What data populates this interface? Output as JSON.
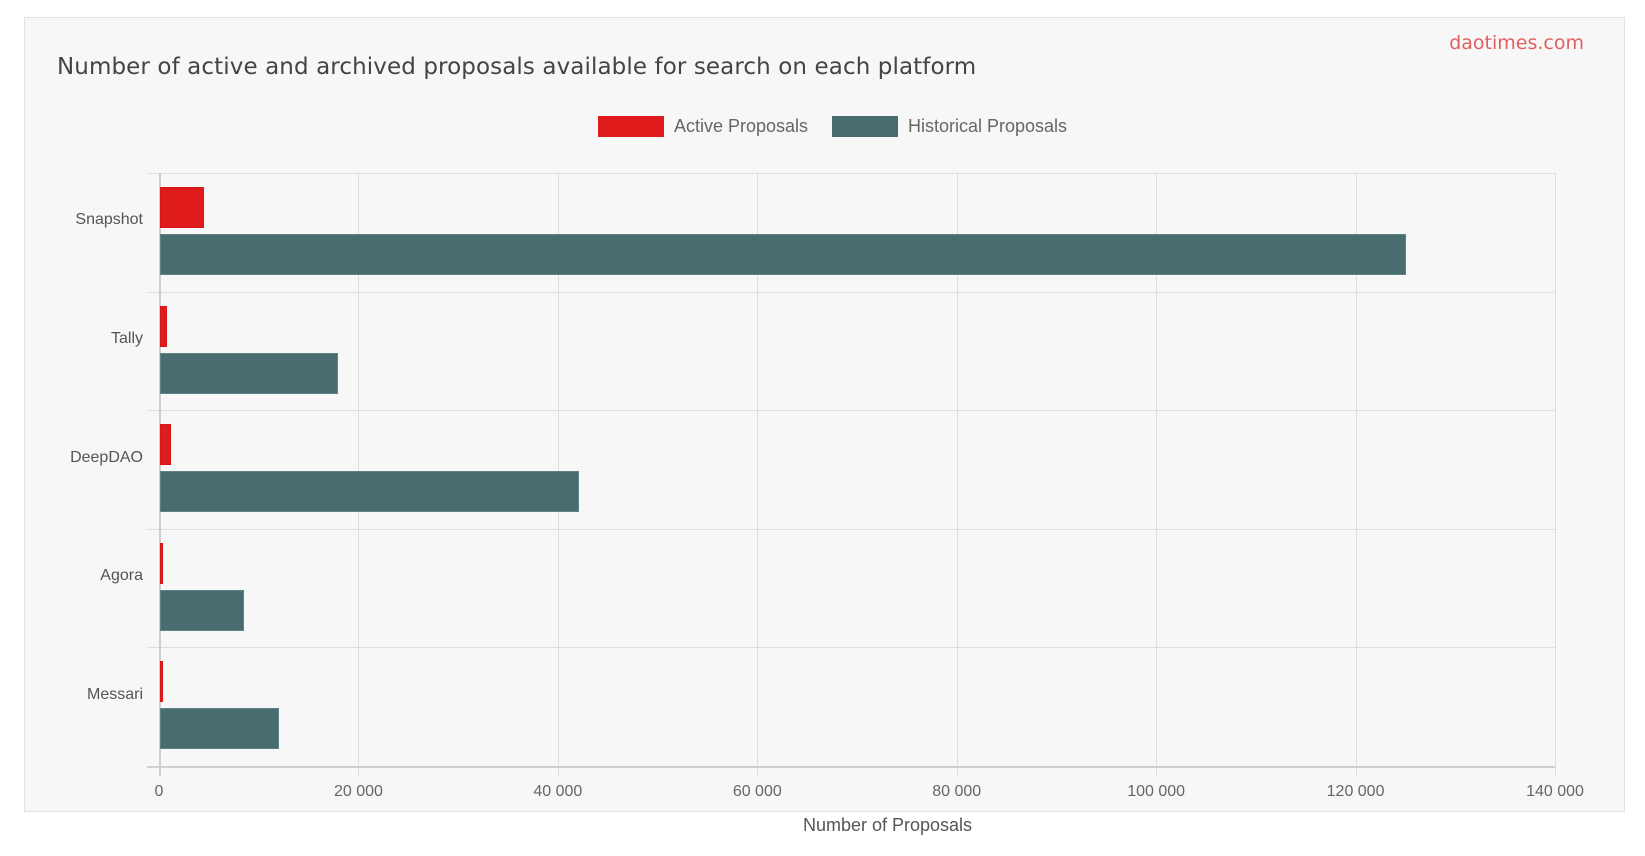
{
  "chart": {
    "title": "Number of active and archived proposals available for search on each platform",
    "brand": "daotimes.com",
    "xlabel": "Number of Proposals",
    "legend": [
      {
        "label": "Active Proposals",
        "color": "#e01b1b"
      },
      {
        "label": "Historical Proposals",
        "color": "#476d6f"
      }
    ],
    "xticks": [
      "0",
      "20 000",
      "40 000",
      "60 000",
      "80 000",
      "100 000",
      "120 000",
      "140 000"
    ],
    "categories": [
      "Snapshot",
      "Tally",
      "DeepDAO",
      "Agora",
      "Messari"
    ]
  },
  "chart_data": {
    "type": "bar",
    "orientation": "horizontal",
    "title": "Number of active and archived proposals available for search on each platform",
    "xlabel": "Number of Proposals",
    "ylabel": "",
    "categories": [
      "Snapshot",
      "Tally",
      "DeepDAO",
      "Agora",
      "Messari"
    ],
    "series": [
      {
        "name": "Active Proposals",
        "color": "#e01b1b",
        "values": [
          4400,
          750,
          1100,
          350,
          250
        ]
      },
      {
        "name": "Historical Proposals",
        "color": "#476d6f",
        "values": [
          125000,
          17900,
          42000,
          8400,
          11900
        ]
      }
    ],
    "xlim": [
      0,
      140000
    ],
    "xticks": [
      0,
      20000,
      40000,
      60000,
      80000,
      100000,
      120000,
      140000
    ],
    "grid": true,
    "legend_position": "top"
  }
}
